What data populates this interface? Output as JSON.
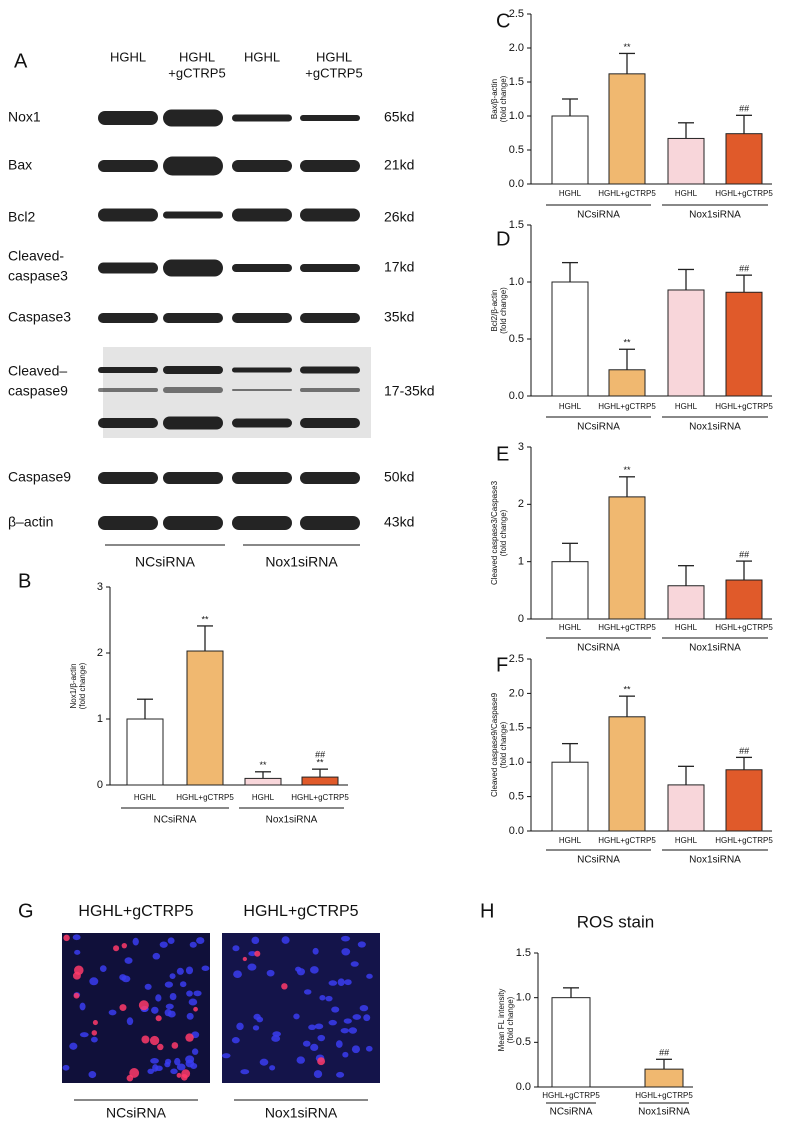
{
  "blot": {
    "panel": "A",
    "lanes": [
      [
        "HGHL"
      ],
      [
        "HGHL",
        "+gCTRP5"
      ],
      [
        "HGHL"
      ],
      [
        "HGHL",
        "+gCTRP5"
      ]
    ],
    "rows": [
      {
        "protein": [
          "Nox1"
        ],
        "size": "65kd"
      },
      {
        "protein": [
          "Bax"
        ],
        "size": "21kd"
      },
      {
        "protein": [
          "Bcl2"
        ],
        "size": "26kd"
      },
      {
        "protein": [
          "Cleaved-",
          "caspase3"
        ],
        "size": "17kd"
      },
      {
        "protein": [
          "Caspase3"
        ],
        "size": "35kd"
      },
      {
        "protein": [
          "Cleaved–",
          "caspase9"
        ],
        "size": "17-35kd"
      },
      {
        "protein": [
          "Caspase9"
        ],
        "size": "50kd"
      },
      {
        "protein": [
          "β–actin"
        ],
        "size": "43kd"
      }
    ],
    "groups": [
      "NCsiRNA",
      "Nox1siRNA"
    ]
  },
  "chart_data": [
    {
      "type": "bar",
      "panel": "B",
      "ylabel": [
        "Nox1/β-actin",
        "(fold change)"
      ],
      "categories": [
        "HGHL",
        "HGHL+gCTRP5",
        "HGHL",
        "HGHL+gCTRP5"
      ],
      "groups": [
        "NCsiRNA",
        "Nox1siRNA"
      ],
      "values": [
        1.0,
        2.03,
        0.1,
        0.12
      ],
      "errors": [
        0.3,
        0.38,
        0.1,
        0.12
      ],
      "colors": [
        "#ffffff",
        "#f0b870",
        "#f8d6da",
        "#e05a2a"
      ],
      "annotations": [
        null,
        [
          "**"
        ],
        [
          "**"
        ],
        [
          "##",
          "**"
        ]
      ],
      "ylim": [
        0,
        3
      ],
      "yticks": [
        0,
        1,
        2,
        3
      ]
    },
    {
      "type": "bar",
      "panel": "C",
      "ylabel": [
        "Bax/β-actin",
        "(fold change)"
      ],
      "categories": [
        "HGHL",
        "HGHL+gCTRP5",
        "HGHL",
        "HGHL+gCTRP5"
      ],
      "groups": [
        "NCsiRNA",
        "Nox1siRNA"
      ],
      "values": [
        1.0,
        1.62,
        0.67,
        0.74
      ],
      "errors": [
        0.25,
        0.3,
        0.23,
        0.27
      ],
      "colors": [
        "#ffffff",
        "#f0b870",
        "#f8d6da",
        "#e05a2a"
      ],
      "annotations": [
        null,
        [
          "**"
        ],
        null,
        [
          "##"
        ]
      ],
      "ylim": [
        0,
        2.5
      ],
      "yticks": [
        {
          "value": 0,
          "label": "0.0"
        },
        0.5,
        {
          "value": 1,
          "label": "1.0"
        },
        1.5,
        {
          "value": 2,
          "label": "2.0"
        },
        2.5
      ]
    },
    {
      "type": "bar",
      "panel": "D",
      "ylabel": [
        "Bcl2/β-actin",
        "(fold change)"
      ],
      "categories": [
        "HGHL",
        "HGHL+gCTRP5",
        "HGHL",
        "HGHL+gCTRP5"
      ],
      "groups": [
        "NCsiRNA",
        "Nox1siRNA"
      ],
      "values": [
        1.0,
        0.23,
        0.93,
        0.91
      ],
      "errors": [
        0.17,
        0.18,
        0.18,
        0.15
      ],
      "colors": [
        "#ffffff",
        "#f0b870",
        "#f8d6da",
        "#e05a2a"
      ],
      "annotations": [
        null,
        [
          "**"
        ],
        null,
        [
          "##"
        ]
      ],
      "ylim": [
        0,
        1.5
      ],
      "yticks": [
        {
          "value": 0,
          "label": "0.0"
        },
        0.5,
        {
          "value": 1,
          "label": "1.0"
        },
        1.5
      ]
    },
    {
      "type": "bar",
      "panel": "E",
      "ylabel": [
        "Cleaved caspase3/Caspase3",
        "(fold change)"
      ],
      "categories": [
        "HGHL",
        "HGHL+gCTRP5",
        "HGHL",
        "HGHL+gCTRP5"
      ],
      "groups": [
        "NCsiRNA",
        "Nox1siRNA"
      ],
      "values": [
        1.0,
        2.13,
        0.58,
        0.68
      ],
      "errors": [
        0.32,
        0.35,
        0.35,
        0.33
      ],
      "colors": [
        "#ffffff",
        "#f0b870",
        "#f8d6da",
        "#e05a2a"
      ],
      "annotations": [
        null,
        [
          "**"
        ],
        null,
        [
          "##"
        ]
      ],
      "ylim": [
        0,
        3
      ],
      "yticks": [
        0,
        1,
        2,
        3
      ]
    },
    {
      "type": "bar",
      "panel": "F",
      "ylabel": [
        "Cleaved caspase9/Caspase9",
        "(fold change)"
      ],
      "categories": [
        "HGHL",
        "HGHL+gCTRP5",
        "HGHL",
        "HGHL+gCTRP5"
      ],
      "groups": [
        "NCsiRNA",
        "Nox1siRNA"
      ],
      "values": [
        1.0,
        1.66,
        0.67,
        0.89
      ],
      "errors": [
        0.27,
        0.3,
        0.27,
        0.18
      ],
      "colors": [
        "#ffffff",
        "#f0b870",
        "#f8d6da",
        "#e05a2a"
      ],
      "annotations": [
        null,
        [
          "**"
        ],
        null,
        [
          "##"
        ]
      ],
      "ylim": [
        0,
        2.5
      ],
      "yticks": [
        {
          "value": 0,
          "label": "0.0"
        },
        0.5,
        {
          "value": 1,
          "label": "1.0"
        },
        1.5,
        {
          "value": 2,
          "label": "2.0"
        },
        2.5
      ]
    },
    {
      "type": "bar",
      "panel": "H",
      "title": "ROS stain",
      "ylabel": [
        "Mean FL intensity",
        "(fold change)"
      ],
      "categories": [
        "HGHL+gCTRP5",
        "HGHL+gCTRP5"
      ],
      "groups": [
        "NCsiRNA",
        "Nox1siRNA"
      ],
      "values": [
        1.0,
        0.2
      ],
      "errors": [
        0.11,
        0.11
      ],
      "colors": [
        "#ffffff",
        "#f0b870"
      ],
      "annotations": [
        null,
        [
          "##"
        ]
      ],
      "ylim": [
        0,
        1.5
      ],
      "yticks": [
        {
          "value": 0,
          "label": "0.0"
        },
        0.5,
        {
          "value": 1,
          "label": "1.0"
        },
        1.5
      ]
    }
  ],
  "micrographs": {
    "panel": "G",
    "images": [
      "HGHL+gCTRP5",
      "HGHL+gCTRP5"
    ],
    "groups": [
      "NCsiRNA",
      "Nox1siRNA"
    ]
  }
}
